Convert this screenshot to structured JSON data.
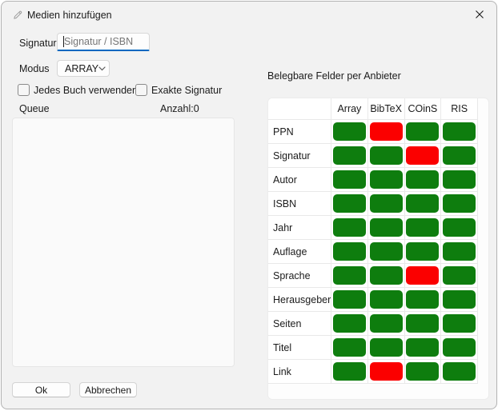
{
  "window": {
    "title": "Medien hinzufügen",
    "close_icon": "close-icon",
    "title_icon": "pencil-icon"
  },
  "form": {
    "signatur": {
      "label": "Signatur",
      "placeholder": "Signatur / ISBN",
      "value": ""
    },
    "modus": {
      "label": "Modus",
      "value": "ARRAY"
    },
    "checkboxes": [
      {
        "label": "Jedes Buch verwenden",
        "checked": false
      },
      {
        "label": "Exakte Signatur",
        "checked": false
      }
    ],
    "queue": {
      "label": "Queue",
      "count_label": "Anzahl:0",
      "items": []
    }
  },
  "footer": {
    "ok_label": "Ok",
    "cancel_label": "Abbrechen"
  },
  "provider_matrix": {
    "heading": "Belegbare Felder per Anbieter",
    "columns": [
      "Array",
      "BibTeX",
      "COinS",
      "RIS"
    ],
    "rows": [
      {
        "label": "PPN",
        "states": [
          "available",
          "unavailable",
          "available",
          "available"
        ]
      },
      {
        "label": "Signatur",
        "states": [
          "available",
          "available",
          "unavailable",
          "available"
        ]
      },
      {
        "label": "Autor",
        "states": [
          "available",
          "available",
          "available",
          "available"
        ]
      },
      {
        "label": "ISBN",
        "states": [
          "available",
          "available",
          "available",
          "available"
        ]
      },
      {
        "label": "Jahr",
        "states": [
          "available",
          "available",
          "available",
          "available"
        ]
      },
      {
        "label": "Auflage",
        "states": [
          "available",
          "available",
          "available",
          "available"
        ]
      },
      {
        "label": "Sprache",
        "states": [
          "available",
          "available",
          "unavailable",
          "available"
        ]
      },
      {
        "label": "Herausgeber",
        "states": [
          "available",
          "available",
          "available",
          "available"
        ]
      },
      {
        "label": "Seiten",
        "states": [
          "available",
          "available",
          "available",
          "available"
        ]
      },
      {
        "label": "Titel",
        "states": [
          "available",
          "available",
          "available",
          "available"
        ]
      },
      {
        "label": "Link",
        "states": [
          "available",
          "unavailable",
          "available",
          "available"
        ]
      }
    ],
    "status_colors": {
      "available": "#0e7d0e",
      "unavailable": "#fb0000"
    }
  }
}
